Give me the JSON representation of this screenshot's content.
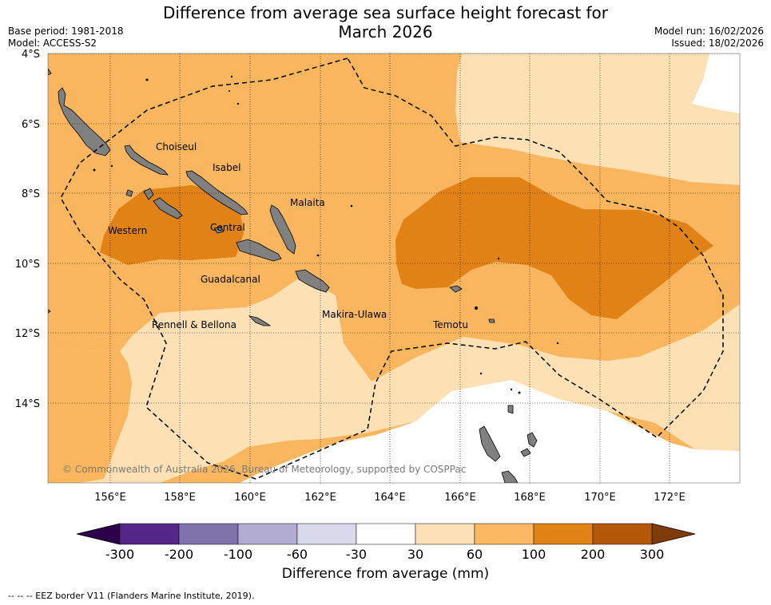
{
  "title": {
    "line1": "Difference from average sea surface height forecast for",
    "line2": "March 2026"
  },
  "meta_left": {
    "base_period": "Base period: 1981-2018",
    "model": "Model: ACCESS-S2"
  },
  "meta_right": {
    "model_run": "Model run: 16/02/2026",
    "issued": "Issued: 18/02/2026"
  },
  "map": {
    "lat_labels": [
      "4°S",
      "6°S",
      "8°S",
      "10°S",
      "12°S",
      "14°S"
    ],
    "lon_labels": [
      "156°E",
      "158°E",
      "160°E",
      "162°E",
      "164°E",
      "166°E",
      "168°E",
      "170°E",
      "172°E"
    ],
    "provinces": [
      "Choiseul",
      "Isabel",
      "Malaita",
      "Western",
      "Central",
      "Guadalcanal",
      "Makira-Ulawa",
      "Rennell & Bellona",
      "Temotu"
    ],
    "copyright": "© Commonwealth of Australia 2026, Bureau of Meteorology, supported by COSPPac",
    "land_color": "#808080",
    "colors": {
      "c30_60": "#fde0b4",
      "c60_100": "#f9b65f",
      "c100_200": "#e08215",
      "white": "#ffffff"
    }
  },
  "colorbar": {
    "ticks": [
      "-300",
      "-200",
      "-100",
      "-60",
      "-30",
      "30",
      "60",
      "100",
      "200",
      "300"
    ],
    "colors": [
      "#2d004b",
      "#542788",
      "#8073ac",
      "#b2abd2",
      "#d8daeb",
      "#ffffff",
      "#fee0b6",
      "#fdb863",
      "#e08214",
      "#b35806",
      "#7f3b08"
    ],
    "label": "Difference from average (mm)"
  },
  "footnote": "--  --  -- EEZ border V11 (Flanders Marine Institute, 2019)."
}
